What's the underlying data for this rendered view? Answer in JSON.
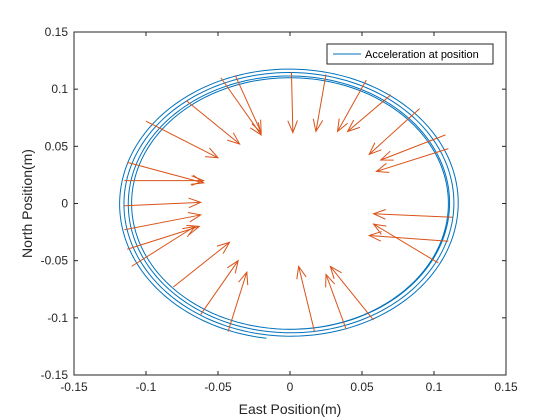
{
  "chart_data": {
    "type": "line",
    "title": "",
    "xlabel": "East Position(m)",
    "ylabel": "North Position(m)",
    "xlim": [
      -0.15,
      0.15
    ],
    "ylim": [
      -0.15,
      0.15
    ],
    "xticks": [
      -0.15,
      -0.1,
      -0.05,
      0,
      0.05,
      0.1,
      0.15
    ],
    "yticks": [
      -0.15,
      -0.1,
      -0.05,
      0,
      0.05,
      0.1,
      0.15
    ],
    "xtick_labels": [
      "-0.15",
      "-0.1",
      "-0.05",
      "0",
      "0.05",
      "0.1",
      "0.15"
    ],
    "ytick_labels": [
      "-0.15",
      "-0.1",
      "-0.05",
      "0",
      "0.05",
      "0.1",
      "0.15"
    ],
    "grid": false,
    "legend": {
      "position": "top-right",
      "entries": [
        "Acceleration at position"
      ]
    },
    "series": [
      {
        "name": "Acceleration at position",
        "color": "#0072BD",
        "kind": "spiral-trajectory",
        "start": [
          -0.017,
          -0.122
        ],
        "end": [
          -0.017,
          -0.122
        ],
        "turns": [
          {
            "radius_x": 0.119,
            "radius_y": 0.119
          },
          {
            "radius_x": 0.116,
            "radius_y": 0.116
          },
          {
            "radius_x": 0.113,
            "radius_y": 0.113
          },
          {
            "radius_x": 0.11,
            "radius_y": 0.11
          }
        ]
      }
    ],
    "arrow_color": "#D95319",
    "arrows": [
      {
        "x0": 0.001,
        "y0": 0.115,
        "x1": 0.002,
        "y1": 0.062
      },
      {
        "x0": 0.025,
        "y0": 0.113,
        "x1": 0.018,
        "y1": 0.063
      },
      {
        "x0": 0.053,
        "y0": 0.108,
        "x1": 0.033,
        "y1": 0.063
      },
      {
        "x0": 0.07,
        "y0": 0.095,
        "x1": 0.04,
        "y1": 0.063
      },
      {
        "x0": 0.09,
        "y0": 0.083,
        "x1": 0.055,
        "y1": 0.043
      },
      {
        "x0": 0.108,
        "y0": 0.06,
        "x1": 0.063,
        "y1": 0.038
      },
      {
        "x0": 0.11,
        "y0": 0.048,
        "x1": 0.06,
        "y1": 0.028
      },
      {
        "x0": 0.113,
        "y0": -0.012,
        "x1": 0.058,
        "y1": -0.009
      },
      {
        "x0": 0.11,
        "y0": -0.033,
        "x1": 0.055,
        "y1": -0.028
      },
      {
        "x0": 0.103,
        "y0": -0.052,
        "x1": 0.058,
        "y1": -0.018
      },
      {
        "x0": 0.058,
        "y0": -0.102,
        "x1": 0.028,
        "y1": -0.055
      },
      {
        "x0": 0.039,
        "y0": -0.11,
        "x1": 0.025,
        "y1": -0.062
      },
      {
        "x0": 0.017,
        "y0": -0.112,
        "x1": 0.006,
        "y1": -0.055
      },
      {
        "x0": -0.043,
        "y0": -0.112,
        "x1": -0.03,
        "y1": -0.06
      },
      {
        "x0": -0.062,
        "y0": -0.097,
        "x1": -0.036,
        "y1": -0.05
      },
      {
        "x0": -0.081,
        "y0": -0.073,
        "x1": -0.042,
        "y1": -0.034
      },
      {
        "x0": -0.11,
        "y0": -0.055,
        "x1": -0.066,
        "y1": -0.02
      },
      {
        "x0": -0.113,
        "y0": -0.04,
        "x1": -0.063,
        "y1": -0.02
      },
      {
        "x0": -0.115,
        "y0": -0.023,
        "x1": -0.062,
        "y1": -0.01
      },
      {
        "x0": -0.115,
        "y0": -0.002,
        "x1": -0.062,
        "y1": 0.001
      },
      {
        "x0": -0.115,
        "y0": 0.02,
        "x1": -0.06,
        "y1": 0.02
      },
      {
        "x0": -0.113,
        "y0": 0.036,
        "x1": -0.06,
        "y1": 0.018
      },
      {
        "x0": -0.1,
        "y0": 0.072,
        "x1": -0.05,
        "y1": 0.04
      },
      {
        "x0": -0.072,
        "y0": 0.09,
        "x1": -0.035,
        "y1": 0.052
      },
      {
        "x0": -0.048,
        "y0": 0.11,
        "x1": -0.02,
        "y1": 0.06
      },
      {
        "x0": -0.038,
        "y0": 0.112,
        "x1": -0.02,
        "y1": 0.062
      }
    ]
  }
}
